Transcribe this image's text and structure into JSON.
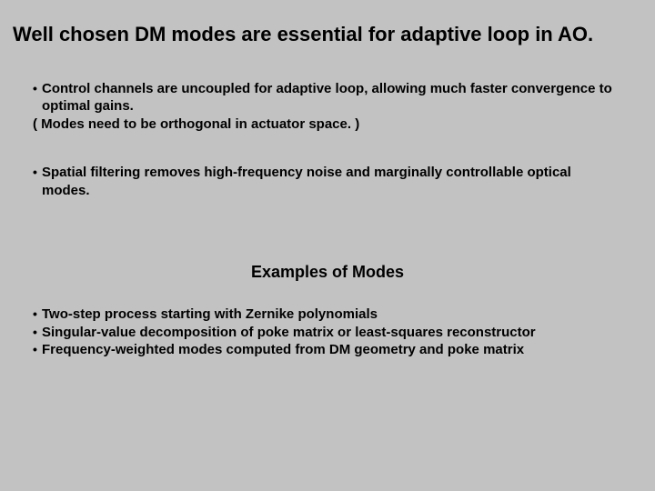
{
  "slide": {
    "background_color": "#c2c2c2",
    "text_color": "#000000",
    "title": "Well chosen DM modes are essential for adaptive loop in AO.",
    "title_fontsize": 22,
    "title_fontweight": "bold",
    "body_fontsize": 15,
    "body_fontweight": "bold",
    "bullet_char": "•",
    "block1": {
      "bullet_lead": "•",
      "bullet_text": "Control channels are uncoupled for adaptive loop,  allowing much faster convergence to optimal gains.",
      "paren_line": "( Modes need to be orthogonal in actuator space. )"
    },
    "block2": {
      "bullet_lead": "•",
      "bullet_text": "Spatial filtering removes high-frequency noise and marginally controllable optical modes."
    },
    "subheading": "Examples of Modes",
    "subheading_fontsize": 18,
    "list": {
      "items": [
        "Two-step process starting with Zernike polynomials",
        "Singular-value decomposition of poke matrix or least-squares reconstructor",
        "Frequency-weighted modes computed from DM geometry and poke matrix"
      ]
    }
  }
}
